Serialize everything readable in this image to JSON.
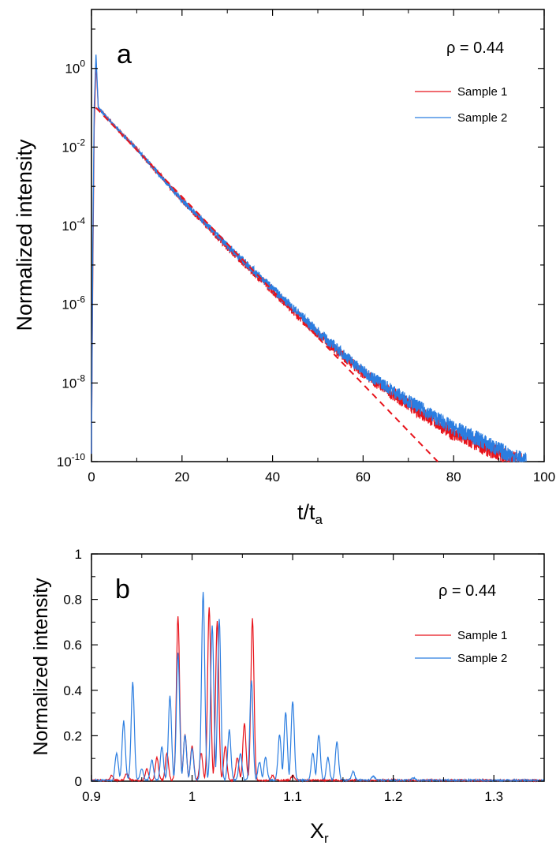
{
  "chart_data": [
    {
      "type": "line",
      "panel_label": "a",
      "annotation": "ρ = 0.44",
      "xlabel_main": "t/t",
      "xlabel_sub": "a",
      "ylabel": "Normalized intensity",
      "xlim": [
        0,
        100
      ],
      "ylim_log10": [
        -10,
        1.5
      ],
      "yscale": "log",
      "x_ticks": [
        "0",
        "20",
        "40",
        "60",
        "80",
        "100"
      ],
      "y_tick_exponents": [
        "0",
        "-2",
        "-4",
        "-6",
        "-8",
        "-10"
      ],
      "y_tick_base": "10",
      "series": [
        {
          "name": "Sample 1",
          "color": "#e8131b",
          "x": [
            0,
            0.3,
            0.6,
            1.0,
            1.5,
            5,
            10,
            20,
            30,
            40,
            50,
            60,
            70,
            80,
            85,
            90,
            95
          ],
          "log10_y": [
            -9.8,
            -5.0,
            -1.5,
            0.2,
            -1.0,
            -1.45,
            -2.05,
            -3.35,
            -4.55,
            -5.65,
            -6.75,
            -7.75,
            -8.55,
            -9.3,
            -9.55,
            -9.8,
            -10.0
          ]
        },
        {
          "name": "Sample 2",
          "color": "#2b7de0",
          "x": [
            0,
            0.3,
            0.6,
            1.0,
            1.5,
            5,
            10,
            20,
            30,
            40,
            50,
            60,
            70,
            80,
            85,
            90,
            96
          ],
          "log10_y": [
            -9.8,
            -4.5,
            -1.0,
            0.35,
            -1.0,
            -1.45,
            -2.05,
            -3.35,
            -4.5,
            -5.6,
            -6.7,
            -7.7,
            -8.45,
            -9.15,
            -9.4,
            -9.7,
            -10.0
          ]
        }
      ],
      "fit_line": {
        "style": "dashed",
        "color": "#e8131b",
        "x": [
          1,
          76.5
        ],
        "log10_y": [
          -1.0,
          -10.0
        ]
      },
      "legend": [
        "Sample 1",
        "Sample 2"
      ]
    },
    {
      "type": "line",
      "panel_label": "b",
      "annotation": "ρ = 0.44",
      "xlabel_main": "X",
      "xlabel_sub": "r",
      "ylabel": "Normalized intensity",
      "xlim": [
        0.9,
        1.35
      ],
      "ylim": [
        0,
        1
      ],
      "x_ticks": [
        "0.9",
        "1",
        "1.1",
        "1.2",
        "1.3"
      ],
      "y_ticks": [
        "0",
        "0.2",
        "0.4",
        "0.6",
        "0.8",
        "1"
      ],
      "series": [
        {
          "name": "Sample 1",
          "color": "#e8131b",
          "peaks": [
            [
              0.92,
              0.02
            ],
            [
              0.935,
              0.03
            ],
            [
              0.955,
              0.05
            ],
            [
              0.965,
              0.1
            ],
            [
              0.975,
              0.12
            ],
            [
              0.986,
              0.72
            ],
            [
              0.993,
              0.2
            ],
            [
              1.0,
              0.15
            ],
            [
              1.009,
              0.12
            ],
            [
              1.017,
              0.76
            ],
            [
              1.025,
              0.7
            ],
            [
              1.033,
              0.15
            ],
            [
              1.045,
              0.1
            ],
            [
              1.052,
              0.25
            ],
            [
              1.06,
              0.71
            ],
            [
              1.08,
              0.02
            ],
            [
              1.1,
              0.02
            ],
            [
              1.2,
              0.005
            ]
          ]
        },
        {
          "name": "Sample 2",
          "color": "#2b7de0",
          "peaks": [
            [
              0.925,
              0.12
            ],
            [
              0.932,
              0.26
            ],
            [
              0.941,
              0.43
            ],
            [
              0.95,
              0.05
            ],
            [
              0.96,
              0.09
            ],
            [
              0.97,
              0.15
            ],
            [
              0.978,
              0.37
            ],
            [
              0.986,
              0.56
            ],
            [
              0.993,
              0.2
            ],
            [
              1.0,
              0.14
            ],
            [
              1.011,
              0.83
            ],
            [
              1.02,
              0.68
            ],
            [
              1.027,
              0.71
            ],
            [
              1.037,
              0.22
            ],
            [
              1.048,
              0.12
            ],
            [
              1.059,
              0.44
            ],
            [
              1.067,
              0.08
            ],
            [
              1.073,
              0.1
            ],
            [
              1.087,
              0.2
            ],
            [
              1.093,
              0.3
            ],
            [
              1.1,
              0.35
            ],
            [
              1.12,
              0.12
            ],
            [
              1.126,
              0.2
            ],
            [
              1.135,
              0.1
            ],
            [
              1.144,
              0.17
            ],
            [
              1.16,
              0.04
            ],
            [
              1.18,
              0.02
            ],
            [
              1.22,
              0.01
            ]
          ]
        }
      ],
      "legend": [
        "Sample 1",
        "Sample 2"
      ]
    }
  ]
}
